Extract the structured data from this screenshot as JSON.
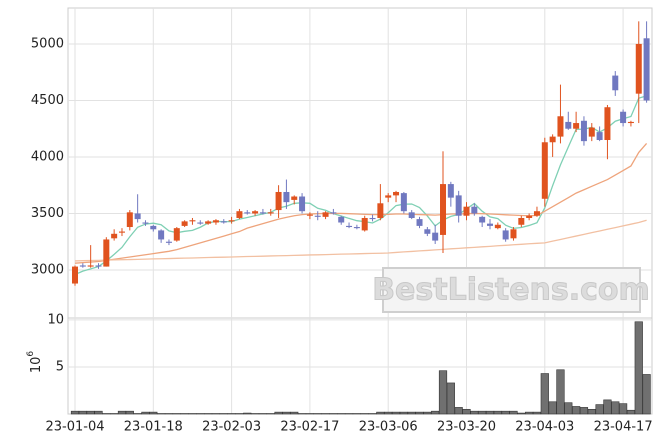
{
  "chart_data": {
    "type": "candlestick",
    "categories": [
      "23-01-04",
      null,
      null,
      null,
      null,
      null,
      null,
      null,
      null,
      null,
      "23-01-18",
      null,
      null,
      null,
      null,
      null,
      null,
      null,
      null,
      null,
      "23-02-03",
      null,
      null,
      null,
      null,
      null,
      null,
      null,
      null,
      null,
      "23-02-17",
      null,
      null,
      null,
      null,
      null,
      null,
      null,
      null,
      null,
      "23-03-06",
      null,
      null,
      null,
      null,
      null,
      null,
      null,
      null,
      null,
      "23-03-20",
      null,
      null,
      null,
      null,
      null,
      null,
      null,
      null,
      null,
      "23-04-03",
      null,
      null,
      null,
      null,
      null,
      null,
      null,
      null,
      null,
      "23-04-17",
      null,
      null,
      null
    ],
    "open": [
      2880,
      3040,
      3030,
      3040,
      3030,
      3280,
      3330,
      3380,
      3500,
      3420,
      3390,
      3350,
      3250,
      3260,
      3390,
      3430,
      3420,
      3410,
      3420,
      3430,
      3430,
      3460,
      3510,
      3500,
      3510,
      3500,
      3530,
      3690,
      3620,
      3650,
      3480,
      3480,
      3470,
      3510,
      3470,
      3390,
      3380,
      3350,
      3460,
      3460,
      3640,
      3660,
      3680,
      3510,
      3450,
      3360,
      3330,
      3310,
      3760,
      3660,
      3480,
      3560,
      3470,
      3410,
      3370,
      3350,
      3280,
      3400,
      3460,
      3480,
      3630,
      4130,
      4180,
      4310,
      4250,
      4320,
      4180,
      4220,
      4150,
      4720,
      4400,
      4300,
      4560,
      5050
    ],
    "high": [
      3040,
      3060,
      3220,
      3060,
      3290,
      3360,
      3370,
      3530,
      3670,
      3440,
      3400,
      3360,
      3270,
      3380,
      3440,
      3460,
      3440,
      3440,
      3450,
      3450,
      3470,
      3540,
      3530,
      3530,
      3540,
      3540,
      3750,
      3800,
      3660,
      3680,
      3510,
      3520,
      3520,
      3540,
      3480,
      3420,
      3400,
      3480,
      3490,
      3760,
      3680,
      3700,
      3690,
      3530,
      3470,
      3380,
      3400,
      4050,
      3780,
      3700,
      3600,
      3590,
      3480,
      3450,
      3420,
      3370,
      3380,
      3480,
      3500,
      3560,
      4170,
      4200,
      4640,
      4400,
      4400,
      4360,
      4300,
      4270,
      4460,
      4760,
      4420,
      4320,
      5200,
      5200
    ],
    "low": [
      2860,
      3020,
      3020,
      3010,
      3030,
      3260,
      3300,
      3350,
      3420,
      3390,
      3340,
      3240,
      3220,
      3250,
      3380,
      3400,
      3400,
      3400,
      3400,
      3410,
      3410,
      3450,
      3490,
      3480,
      3490,
      3480,
      3460,
      3540,
      3580,
      3500,
      3450,
      3440,
      3450,
      3490,
      3400,
      3370,
      3360,
      3340,
      3430,
      3440,
      3600,
      3600,
      3500,
      3450,
      3370,
      3300,
      3230,
      3150,
      3560,
      3420,
      3440,
      3480,
      3380,
      3360,
      3360,
      3250,
      3260,
      3380,
      3440,
      3470,
      3560,
      4000,
      4120,
      4240,
      4220,
      4100,
      4140,
      4140,
      3980,
      4540,
      4270,
      4270,
      4300,
      4480
    ],
    "close": [
      3030,
      3030,
      3040,
      3030,
      3270,
      3320,
      3340,
      3510,
      3450,
      3410,
      3360,
      3270,
      3240,
      3370,
      3430,
      3440,
      3410,
      3430,
      3440,
      3420,
      3440,
      3520,
      3500,
      3520,
      3500,
      3510,
      3690,
      3600,
      3650,
      3520,
      3490,
      3470,
      3510,
      3500,
      3420,
      3380,
      3370,
      3460,
      3450,
      3590,
      3660,
      3690,
      3520,
      3460,
      3390,
      3320,
      3260,
      3760,
      3640,
      3480,
      3560,
      3500,
      3420,
      3390,
      3400,
      3270,
      3360,
      3460,
      3480,
      3520,
      4130,
      4180,
      4360,
      4250,
      4300,
      4140,
      4260,
      4150,
      4440,
      4590,
      4300,
      4310,
      5000,
      4500
    ],
    "volume": [
      0.3,
      0.3,
      0.3,
      0.3,
      0.05,
      0.05,
      0.3,
      0.3,
      0.05,
      0.2,
      0.2,
      0.05,
      0.05,
      0.05,
      0.05,
      0.05,
      0.05,
      0.05,
      0.05,
      0.05,
      0.05,
      0.05,
      0.1,
      0.05,
      0.05,
      0.05,
      0.2,
      0.2,
      0.2,
      0.05,
      0.05,
      0.05,
      0.05,
      0.05,
      0.05,
      0.05,
      0.05,
      0.05,
      0.05,
      0.2,
      0.2,
      0.2,
      0.2,
      0.2,
      0.2,
      0.2,
      0.3,
      4.6,
      3.3,
      0.7,
      0.5,
      0.3,
      0.3,
      0.3,
      0.3,
      0.3,
      0.3,
      0.1,
      0.2,
      0.2,
      4.3,
      1.3,
      4.7,
      1.2,
      0.8,
      0.7,
      0.5,
      1.0,
      1.5,
      1.3,
      1.1,
      0.4,
      9.8,
      4.2
    ],
    "up_color": "#e0531f",
    "down_color": "#7078c0",
    "ma_lines": [
      {
        "color": "#7fd0b4",
        "values": [
          2960,
          2990,
          3010,
          3030,
          3080,
          3138,
          3200,
          3294,
          3378,
          3406,
          3414,
          3400,
          3346,
          3330,
          3342,
          3350,
          3378,
          3416,
          3430,
          3428,
          3428,
          3450,
          3464,
          3480,
          3496,
          3510,
          3548,
          3564,
          3590,
          3594,
          3590,
          3546,
          3528,
          3498,
          3478,
          3456,
          3436,
          3428,
          3416,
          3450,
          3506,
          3570,
          3582,
          3584,
          3552,
          3478,
          3390,
          3442,
          3474,
          3492,
          3540,
          3588,
          3520,
          3470,
          3454,
          3396,
          3368,
          3376,
          3394,
          3418,
          3550,
          3746,
          3930,
          4088,
          4244,
          4246,
          4262,
          4220,
          4258,
          4316,
          4338,
          4358,
          4520,
          4540
        ]
      },
      {
        "color": "#eea47c",
        "values": [
          3060,
          3065,
          3070,
          3075,
          3085,
          3095,
          3105,
          3115,
          3125,
          3135,
          3145,
          3155,
          3165,
          3180,
          3200,
          3220,
          3240,
          3260,
          3280,
          3300,
          3320,
          3340,
          3370,
          3390,
          3410,
          3430,
          3450,
          3465,
          3480,
          3490,
          3495,
          3498,
          3500,
          3500,
          3500,
          3498,
          3495,
          3492,
          3490,
          3490,
          3492,
          3495,
          3495,
          3492,
          3490,
          3488,
          3485,
          3490,
          3495,
          3495,
          3498,
          3500,
          3498,
          3495,
          3492,
          3488,
          3485,
          3482,
          3480,
          3482,
          3520,
          3560,
          3600,
          3640,
          3680,
          3710,
          3740,
          3770,
          3800,
          3840,
          3880,
          3920,
          4040,
          4120
        ]
      },
      {
        "color": "#f2c0a2",
        "values": [
          3080,
          3082,
          3084,
          3085,
          3087,
          3089,
          3091,
          3092,
          3094,
          3096,
          3098,
          3099,
          3101,
          3103,
          3105,
          3106,
          3108,
          3110,
          3112,
          3113,
          3115,
          3117,
          3119,
          3120,
          3122,
          3124,
          3126,
          3127,
          3129,
          3131,
          3133,
          3134,
          3136,
          3138,
          3140,
          3141,
          3143,
          3145,
          3147,
          3148,
          3150,
          3155,
          3160,
          3164,
          3169,
          3173,
          3178,
          3182,
          3187,
          3191,
          3196,
          3200,
          3205,
          3209,
          3214,
          3218,
          3223,
          3227,
          3232,
          3236,
          3240,
          3255,
          3270,
          3285,
          3300,
          3315,
          3330,
          3345,
          3360,
          3375,
          3390,
          3405,
          3420,
          3440
        ]
      }
    ],
    "ylim": [
      2575,
      5318
    ],
    "yticks": [
      3000,
      3500,
      4000,
      4500,
      5000
    ],
    "volume_ylim": [
      0,
      10.2
    ],
    "volume_yticks": [
      5,
      10
    ],
    "volume_unit": {
      "base": "10",
      "exponent": "6"
    },
    "volume_color": "#707070",
    "grid": true,
    "watermark": "BestListens.com"
  }
}
